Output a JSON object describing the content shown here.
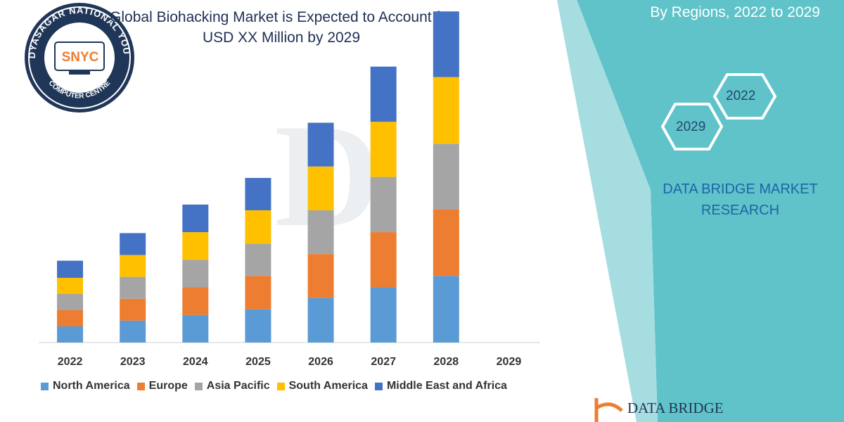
{
  "title_line1": "Global Biohacking Market is Expected to Account for",
  "title_line2": "USD XX Million by 2029",
  "region_title": "By Regions, 2022 to 2029",
  "hex_labels": [
    "2022",
    "2029"
  ],
  "brand_line1": "DATA BRIDGE MARKET",
  "brand_line2": "RESEARCH",
  "footer_brand": "DATA BRIDGE",
  "logo": {
    "ring_text_top": "VIDYASAGAR NATIONAL YOUTH",
    "ring_text_bottom": "COMPUTER CENTRE",
    "center_text": "SNYC"
  },
  "colors": {
    "teal": "#5fc3c9",
    "navy": "#1f3658",
    "accent_blue": "#1f64a8"
  },
  "chart_data": {
    "type": "bar",
    "stacked": true,
    "categories": [
      "2022",
      "2023",
      "2024",
      "2025",
      "2026",
      "2027",
      "2028",
      "2029"
    ],
    "series": [
      {
        "name": "North America",
        "color": "#5b9bd5",
        "values": [
          17,
          23,
          29,
          35,
          47,
          58,
          70,
          null
        ]
      },
      {
        "name": "Europe",
        "color": "#ed7d31",
        "values": [
          17,
          23,
          29,
          35,
          46,
          58,
          70,
          null
        ]
      },
      {
        "name": "Asia Pacific",
        "color": "#a5a5a5",
        "values": [
          17,
          23,
          29,
          34,
          46,
          58,
          69,
          null
        ]
      },
      {
        "name": "South America",
        "color": "#ffc000",
        "values": [
          17,
          23,
          29,
          35,
          46,
          58,
          70,
          null
        ]
      },
      {
        "name": "Middle East and Africa",
        "color": "#4472c4",
        "values": [
          18,
          23,
          29,
          34,
          46,
          58,
          69,
          null
        ]
      }
    ],
    "ylim": [
      0,
      360
    ],
    "grid": false,
    "legend_position": "bottom"
  }
}
